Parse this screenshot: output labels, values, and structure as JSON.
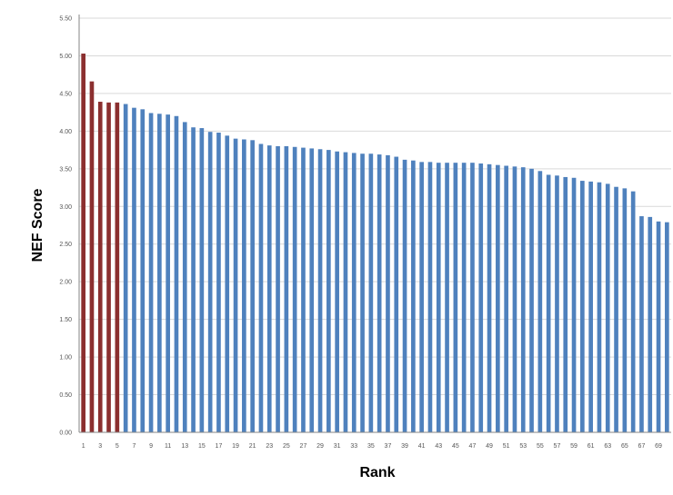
{
  "chart_data": {
    "type": "bar",
    "title": "",
    "xlabel": "Rank",
    "ylabel": "NEF Score",
    "ylim": [
      0,
      5.5
    ],
    "yticks": [
      "0.00",
      "0.50",
      "1.00",
      "1.50",
      "2.00",
      "2.50",
      "3.00",
      "3.50",
      "4.00",
      "4.50",
      "5.00",
      "5.50"
    ],
    "grid": true,
    "legend": "none",
    "colors": {
      "highlight": "#8b2f2f",
      "normal": "#4f81bd",
      "grid": "#d9d9d9",
      "axis": "#868686"
    },
    "highlight_ranks": [
      1,
      2,
      3,
      4,
      5
    ],
    "x_tick_labels": [
      "1",
      "3",
      "5",
      "7",
      "9",
      "11",
      "13",
      "15",
      "17",
      "19",
      "21",
      "23",
      "25",
      "27",
      "29",
      "31",
      "33",
      "35",
      "37",
      "39",
      "41",
      "43",
      "45",
      "47",
      "49",
      "51",
      "53",
      "55",
      "57",
      "59",
      "61",
      "63",
      "65",
      "67",
      "69"
    ],
    "categories": [
      1,
      2,
      3,
      4,
      5,
      6,
      7,
      8,
      9,
      10,
      11,
      12,
      13,
      14,
      15,
      16,
      17,
      18,
      19,
      20,
      21,
      22,
      23,
      24,
      25,
      26,
      27,
      28,
      29,
      30,
      31,
      32,
      33,
      34,
      35,
      36,
      37,
      38,
      39,
      40,
      41,
      42,
      43,
      44,
      45,
      46,
      47,
      48,
      49,
      50,
      51,
      52,
      53,
      54,
      55,
      56,
      57,
      58,
      59,
      60,
      61,
      62,
      63,
      64,
      65,
      66,
      67,
      68,
      69,
      70
    ],
    "values": [
      5.03,
      4.66,
      4.39,
      4.38,
      4.38,
      4.36,
      4.31,
      4.29,
      4.24,
      4.23,
      4.22,
      4.2,
      4.12,
      4.05,
      4.04,
      3.99,
      3.98,
      3.94,
      3.9,
      3.89,
      3.88,
      3.83,
      3.81,
      3.8,
      3.8,
      3.79,
      3.78,
      3.77,
      3.76,
      3.75,
      3.73,
      3.72,
      3.71,
      3.7,
      3.7,
      3.69,
      3.68,
      3.66,
      3.62,
      3.61,
      3.59,
      3.59,
      3.58,
      3.58,
      3.58,
      3.58,
      3.58,
      3.57,
      3.56,
      3.55,
      3.54,
      3.53,
      3.52,
      3.5,
      3.47,
      3.42,
      3.41,
      3.39,
      3.38,
      3.34,
      3.33,
      3.32,
      3.3,
      3.26,
      3.24,
      3.2,
      2.87,
      2.86,
      2.8,
      2.79
    ]
  }
}
